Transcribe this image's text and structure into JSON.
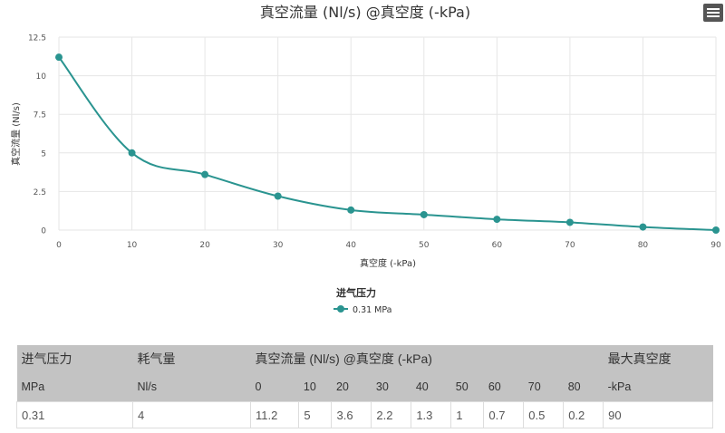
{
  "chart_data": {
    "type": "line",
    "title": "真空流量 (Nl/s) @真空度 (-kPa)",
    "xlabel": "真空度 (-kPa)",
    "ylabel": "真空流量 (Nl/s)",
    "x": [
      0,
      10,
      20,
      30,
      40,
      50,
      60,
      70,
      80,
      90
    ],
    "xticks": [
      "0",
      "10",
      "20",
      "30",
      "40",
      "50",
      "60",
      "70",
      "80",
      "90"
    ],
    "yticks": [
      "0",
      "2.5",
      "5",
      "7.5",
      "10",
      "12.5"
    ],
    "xlim": [
      0,
      90
    ],
    "ylim": [
      0,
      12.5
    ],
    "grid": true,
    "legend_title": "进气压力",
    "legend_placement": "bottom",
    "series": [
      {
        "name": "0.31 MPa",
        "color": "#2a9490",
        "values": [
          11.2,
          5,
          3.6,
          2.2,
          1.3,
          1,
          0.7,
          0.5,
          0.2,
          0
        ]
      }
    ]
  },
  "menu_icon": "hamburger-menu-icon",
  "table": {
    "headers": [
      "进气压力",
      "耗气量",
      "真空流量 (Nl/s) @真空度 (-kPa)",
      "最大真空度"
    ],
    "units": [
      "MPa",
      "Nl/s",
      "0",
      "10",
      "20",
      "30",
      "40",
      "50",
      "60",
      "70",
      "80",
      "-kPa"
    ],
    "rows": [
      [
        "0.31",
        "4",
        "11.2",
        "5",
        "3.6",
        "2.2",
        "1.3",
        "1",
        "0.7",
        "0.5",
        "0.2",
        "90"
      ]
    ]
  }
}
